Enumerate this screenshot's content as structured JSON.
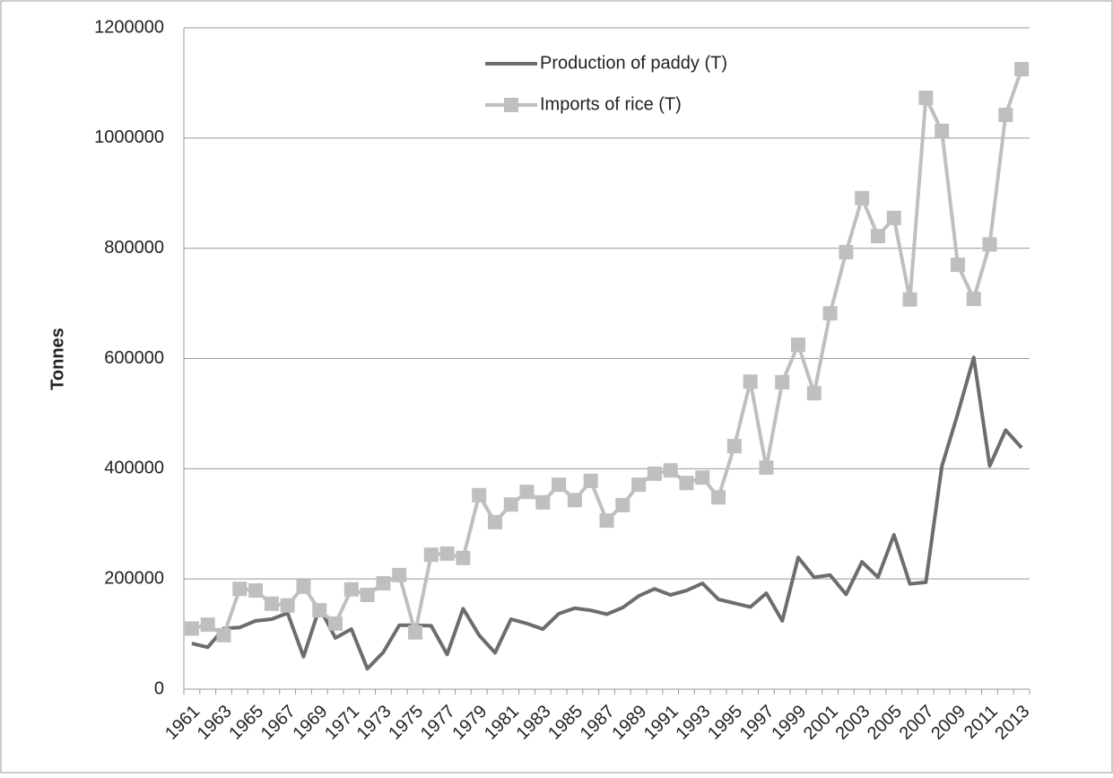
{
  "chart_data": {
    "type": "line",
    "y_label": "Tonnes",
    "categories": [
      "1961",
      null,
      "1963",
      null,
      "1965",
      null,
      "1967",
      null,
      "1969",
      null,
      "1971",
      null,
      "1973",
      null,
      "1975",
      null,
      "1977",
      null,
      "1979",
      null,
      "1981",
      null,
      "1983",
      null,
      "1985",
      null,
      "1987",
      null,
      "1989",
      null,
      "1991",
      null,
      "1993",
      null,
      "1995",
      null,
      "1997",
      null,
      "1999",
      null,
      "2001",
      null,
      "2003",
      null,
      "2005",
      null,
      "2007",
      null,
      "2009",
      null,
      "2011",
      null,
      "2013"
    ],
    "series": [
      {
        "name": "Production of paddy (T)",
        "color": "#6d6d6d",
        "marker": "none",
        "values": [
          83000,
          76000,
          110000,
          112000,
          124000,
          127000,
          138000,
          59000,
          148000,
          93000,
          109000,
          37000,
          67000,
          116000,
          116000,
          115000,
          63000,
          146000,
          98000,
          66000,
          127000,
          119000,
          109000,
          137000,
          147000,
          143000,
          136000,
          148000,
          169000,
          182000,
          171000,
          179000,
          192000,
          163000,
          156000,
          149000,
          174000,
          124000,
          239000,
          203000,
          207000,
          172000,
          231000,
          203000,
          280000,
          191000,
          194000,
          404000,
          500000,
          602000,
          405000,
          470000,
          438000
        ]
      },
      {
        "name": "Imports of rice (T)",
        "color": "#bfbfbf",
        "marker": "square",
        "values": [
          110000,
          117000,
          98000,
          182000,
          179000,
          155000,
          152000,
          186000,
          143000,
          119000,
          181000,
          171000,
          192000,
          207000,
          103000,
          244000,
          246000,
          238000,
          352000,
          303000,
          335000,
          358000,
          339000,
          371000,
          343000,
          378000,
          306000,
          334000,
          371000,
          391000,
          397000,
          374000,
          384000,
          348000,
          441000,
          558000,
          402000,
          557000,
          625000,
          537000,
          682000,
          793000,
          891000,
          822000,
          855000,
          707000,
          1073000,
          1013000,
          770000,
          708000,
          807000,
          1042000,
          1125000
        ]
      }
    ],
    "ylim": [
      0,
      1200000
    ],
    "yticks": [
      0,
      200000,
      400000,
      600000,
      800000,
      1000000,
      1200000
    ],
    "grid": true
  }
}
